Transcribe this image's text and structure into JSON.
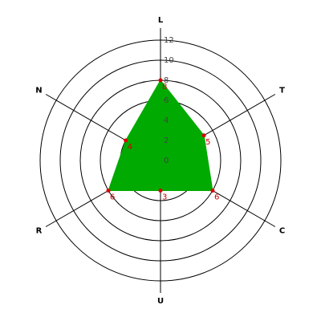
{
  "chart_data": {
    "type": "radar",
    "categories": [
      "L",
      "T",
      "C",
      "U",
      "R",
      "N"
    ],
    "values": [
      8,
      5,
      6,
      3,
      6,
      4
    ],
    "color": "#00aa00",
    "marker_color": "#dd0000",
    "rlim": [
      0,
      12
    ],
    "rticks": [
      0,
      2,
      4,
      6,
      8,
      10,
      12
    ],
    "grid": true
  }
}
